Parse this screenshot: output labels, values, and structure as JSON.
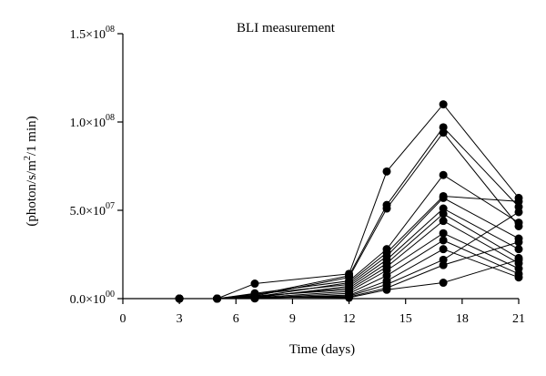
{
  "chart_data": {
    "type": "line",
    "title": "BLI measurement",
    "xlabel": "Time (days)",
    "ylabel": "(photon/s/m²/1 min)",
    "xlim": [
      0,
      21
    ],
    "ylim": [
      0,
      150000000
    ],
    "xticks": [
      0,
      3,
      6,
      9,
      12,
      15,
      18,
      21
    ],
    "xtick_labels": [
      "0",
      "3",
      "6",
      "9",
      "12",
      "15",
      "18",
      "21"
    ],
    "yticks": [
      0,
      50000000,
      100000000,
      150000000
    ],
    "ytick_labels": [
      {
        "mantissa": "0.0",
        "times": "×",
        "base": "10",
        "exp": "00"
      },
      {
        "mantissa": "5.0",
        "times": "×",
        "base": "10",
        "exp": "07"
      },
      {
        "mantissa": "1.0",
        "times": "×",
        "base": "10",
        "exp": "08"
      },
      {
        "mantissa": "1.5",
        "times": "×",
        "base": "10",
        "exp": "08"
      }
    ],
    "grid": false,
    "x": [
      3,
      5,
      7,
      12,
      14,
      17,
      21
    ],
    "series": [
      {
        "values": [
          0,
          0,
          8500000,
          14000000,
          72000000,
          110000000,
          57000000
        ]
      },
      {
        "values": [
          0,
          0,
          2000000,
          13000000,
          53000000,
          97000000,
          52000000
        ]
      },
      {
        "values": [
          0,
          0,
          1500000,
          12000000,
          51000000,
          94000000,
          41000000
        ]
      },
      {
        "values": [
          0,
          0,
          3000000,
          10000000,
          28000000,
          70000000,
          43000000
        ]
      },
      {
        "values": [
          0,
          0,
          1000000,
          9000000,
          26000000,
          58000000,
          55000000
        ]
      },
      {
        "values": [
          0,
          0,
          2500000,
          8000000,
          24000000,
          57000000,
          34000000
        ]
      },
      {
        "values": [
          0,
          0,
          500000,
          7000000,
          22000000,
          51000000,
          28000000
        ]
      },
      {
        "values": [
          0,
          0,
          1000000,
          6000000,
          20000000,
          48000000,
          23000000
        ]
      },
      {
        "values": [
          0,
          0,
          1500000,
          5000000,
          18000000,
          44000000,
          20000000
        ]
      },
      {
        "values": [
          0,
          0,
          500000,
          4000000,
          16000000,
          37000000,
          17000000
        ]
      },
      {
        "values": [
          0,
          0,
          200000,
          3000000,
          13000000,
          33000000,
          14000000
        ]
      },
      {
        "values": [
          0,
          0,
          100000,
          2000000,
          10000000,
          28000000,
          12000000
        ]
      },
      {
        "values": [
          0,
          0,
          300000,
          1500000,
          8000000,
          22000000,
          49000000
        ]
      },
      {
        "values": [
          0,
          0,
          600000,
          1000000,
          6000000,
          19000000,
          32000000
        ]
      },
      {
        "values": [
          0,
          0,
          800000,
          500000,
          5000000,
          9000000,
          22000000
        ]
      }
    ]
  }
}
